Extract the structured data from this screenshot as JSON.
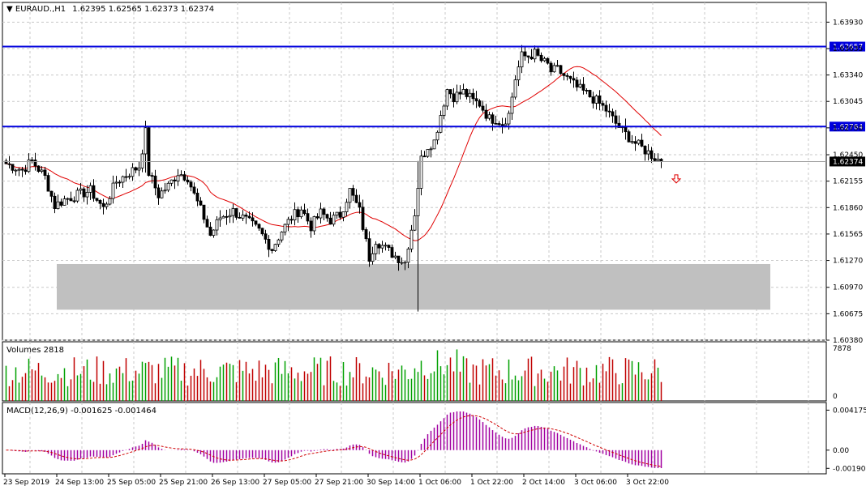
{
  "header": {
    "symbol": "EURAUD.,H1",
    "ohlc": "1.62395 1.62565 1.62373 1.62374"
  },
  "colors": {
    "grid": "#c8c8c8",
    "candle": "#000000",
    "ma": "#e00000",
    "level_line": "#0000dd",
    "level_label_bg": "#0000dd",
    "zone": "#c0c0c0",
    "vol_up": "#00a000",
    "vol_down": "#c00000",
    "macd_hist": "#a000a0",
    "macd_signal": "#d00000",
    "arrow": "#e00000"
  },
  "price_panel": {
    "ylim": [
      1.6038,
      1.6415
    ],
    "tick_labels": [
      "1.63930",
      "1.63635",
      "1.63340",
      "1.63045",
      "1.62750",
      "1.62450",
      "1.62155",
      "1.61860",
      "1.61565",
      "1.61270",
      "1.60970",
      "1.60675",
      "1.60380"
    ],
    "tick_values": [
      1.6393,
      1.63635,
      1.6334,
      1.63045,
      1.6275,
      1.6245,
      1.62155,
      1.6186,
      1.61565,
      1.6127,
      1.6097,
      1.60675,
      1.6038
    ],
    "levels": [
      {
        "value": 1.63657,
        "label": "1.63657"
      },
      {
        "value": 1.62764,
        "label": "1.62764"
      }
    ],
    "current": {
      "value": 1.62374,
      "label": "1.62374"
    },
    "zone": {
      "y_top": 1.6123,
      "y_bottom": 1.6072,
      "x_start_bar": 16,
      "x_end_bar": 236
    }
  },
  "volume_panel": {
    "label": "Volumes 2818",
    "ymax_label": "7878",
    "ymin_label": "0",
    "ymax": 7878
  },
  "macd_panel": {
    "label": "MACD(12,26,9) -0.001625 -0.001464",
    "tick_labels": [
      "0.004175",
      "0.00",
      "-0.001901"
    ],
    "tick_values": [
      0.004175,
      0.0,
      -0.001901
    ],
    "ylim": [
      -0.0023,
      0.0048
    ]
  },
  "x_axis": {
    "labels": [
      "23 Sep 2019",
      "24 Sep 13:00",
      "25 Sep 05:00",
      "25 Sep 21:00",
      "26 Sep 13:00",
      "27 Sep 05:00",
      "27 Sep 21:00",
      "30 Sep 14:00",
      "1 Oct 06:00",
      "1 Oct 22:00",
      "2 Oct 14:00",
      "3 Oct 06:00",
      "3 Oct 22:00"
    ],
    "label_bars": [
      0,
      16,
      32,
      48,
      64,
      80,
      96,
      112,
      128,
      144,
      160,
      176,
      192
    ]
  },
  "chart_data": {
    "type": "candlestick",
    "ma_period": 20,
    "close_anchors": [
      [
        0,
        1.6235
      ],
      [
        5,
        1.6228
      ],
      [
        8,
        1.6238
      ],
      [
        12,
        1.622
      ],
      [
        15,
        1.6188
      ],
      [
        18,
        1.6195
      ],
      [
        22,
        1.62
      ],
      [
        26,
        1.6205
      ],
      [
        30,
        1.6185
      ],
      [
        34,
        1.6215
      ],
      [
        38,
        1.6225
      ],
      [
        41,
        1.6232
      ],
      [
        43,
        1.627
      ],
      [
        44,
        1.6225
      ],
      [
        47,
        1.62
      ],
      [
        50,
        1.621
      ],
      [
        53,
        1.6225
      ],
      [
        56,
        1.622
      ],
      [
        58,
        1.62
      ],
      [
        61,
        1.6175
      ],
      [
        63,
        1.6155
      ],
      [
        66,
        1.6175
      ],
      [
        70,
        1.6182
      ],
      [
        74,
        1.6172
      ],
      [
        78,
        1.616
      ],
      [
        82,
        1.614
      ],
      [
        85,
        1.616
      ],
      [
        88,
        1.6175
      ],
      [
        91,
        1.6185
      ],
      [
        94,
        1.6165
      ],
      [
        97,
        1.618
      ],
      [
        100,
        1.6172
      ],
      [
        103,
        1.6178
      ],
      [
        106,
        1.6205
      ],
      [
        109,
        1.6182
      ],
      [
        112,
        1.613
      ],
      [
        114,
        1.615
      ],
      [
        117,
        1.614
      ],
      [
        120,
        1.6132
      ],
      [
        123,
        1.6125
      ],
      [
        124,
        1.6145
      ],
      [
        126,
        1.618
      ],
      [
        128,
        1.624
      ],
      [
        130,
        1.6255
      ],
      [
        132,
        1.626
      ],
      [
        134,
        1.629
      ],
      [
        136,
        1.6318
      ],
      [
        138,
        1.631
      ],
      [
        141,
        1.6315
      ],
      [
        144,
        1.6305
      ],
      [
        146,
        1.6302
      ],
      [
        149,
        1.6285
      ],
      [
        151,
        1.6285
      ],
      [
        153,
        1.628
      ],
      [
        155,
        1.629
      ],
      [
        157,
        1.633
      ],
      [
        159,
        1.6355
      ],
      [
        161,
        1.6355
      ],
      [
        163,
        1.6358
      ],
      [
        165,
        1.635
      ],
      [
        167,
        1.6345
      ],
      [
        168,
        1.6338
      ],
      [
        170,
        1.634
      ],
      [
        173,
        1.633
      ],
      [
        176,
        1.632
      ],
      [
        179,
        1.6313
      ],
      [
        182,
        1.6305
      ],
      [
        185,
        1.6295
      ],
      [
        188,
        1.628
      ],
      [
        191,
        1.6268
      ],
      [
        194,
        1.6258
      ],
      [
        197,
        1.625
      ],
      [
        200,
        1.6242
      ],
      [
        202,
        1.62374
      ]
    ],
    "special_bars": [
      {
        "bar": 43,
        "high": 1.6283,
        "low": 1.6225
      },
      {
        "bar": 127,
        "high": 1.6238,
        "low": 1.607
      }
    ]
  }
}
